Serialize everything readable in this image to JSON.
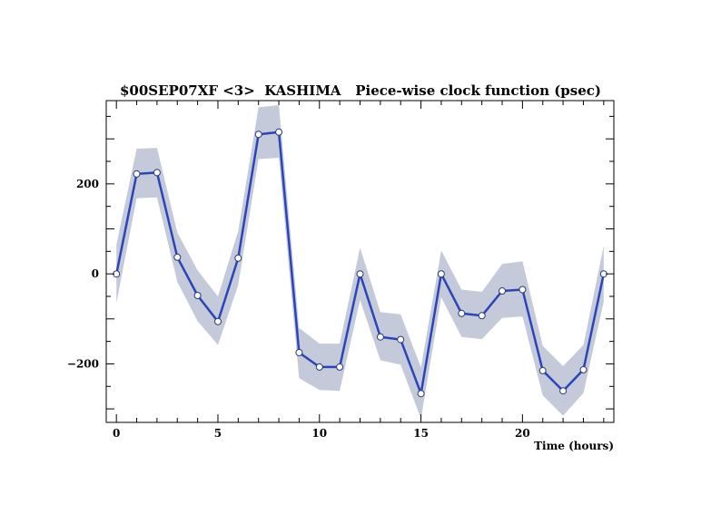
{
  "chart_data": {
    "type": "line",
    "title": "$00SEP07XF <3>  KASHIMA   Piece-wise clock function (psec)",
    "xlabel": "Time (hours)",
    "ylabel": "",
    "xlim": [
      -0.5,
      24.5
    ],
    "ylim": [
      -330,
      385
    ],
    "x_ticks": [
      0,
      5,
      10,
      15,
      20
    ],
    "y_ticks": [
      -200,
      0,
      200
    ],
    "x_tick_labels": [
      "0",
      "5",
      "10",
      "15",
      "20"
    ],
    "y_tick_labels": [
      "−200",
      "0",
      "200"
    ],
    "grid": false,
    "colors": {
      "line": "#2a45b8",
      "band": "#c5cadb",
      "marker_fill": "#ffffff"
    },
    "series": [
      {
        "x": [
          0,
          1,
          2,
          3,
          4,
          5,
          6,
          7,
          8,
          9,
          10,
          11,
          12,
          13,
          14,
          15,
          16,
          17,
          18,
          19,
          20,
          21,
          22,
          23,
          24
        ],
        "values": [
          0,
          222,
          225,
          37,
          -48,
          -106,
          35,
          310,
          315,
          -175,
          -207,
          -207,
          0,
          -140,
          -146,
          -266,
          0,
          -88,
          -93,
          -38,
          -35,
          -215,
          -260,
          -213,
          0
        ],
        "upper": [
          65,
          278,
          280,
          92,
          8,
          -50,
          95,
          370,
          375,
          -120,
          -155,
          -155,
          58,
          -85,
          -90,
          -208,
          52,
          -35,
          -40,
          22,
          28,
          -160,
          -205,
          -158,
          62
        ],
        "lower": [
          -65,
          168,
          170,
          -18,
          -105,
          -158,
          -25,
          255,
          258,
          -232,
          -258,
          -260,
          -58,
          -192,
          -202,
          -322,
          -52,
          -140,
          -145,
          -98,
          -95,
          -270,
          -315,
          -265,
          -62
        ]
      }
    ]
  }
}
